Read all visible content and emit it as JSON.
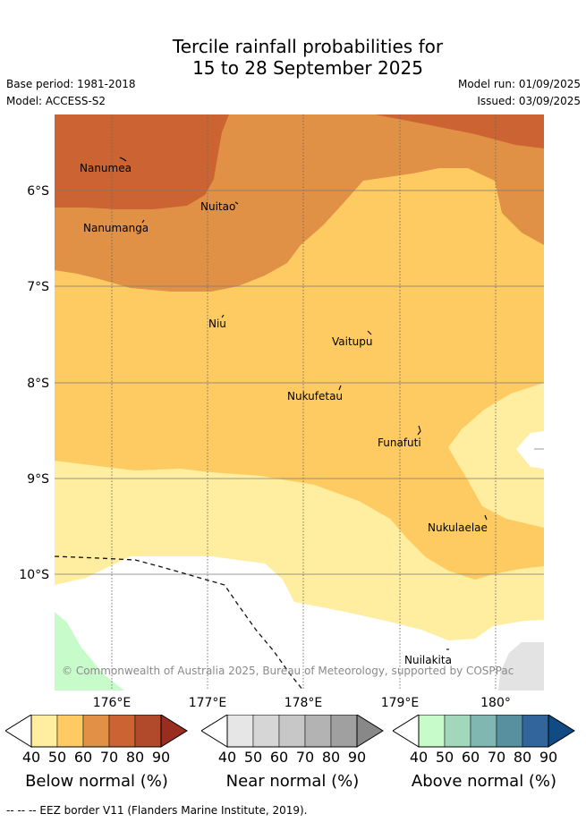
{
  "header": {
    "title_line1": "Tercile rainfall probabilities for",
    "title_line2": "15 to 28 September 2025",
    "base_period": "Base period: 1981-2018",
    "model": "Model: ACCESS-S2",
    "model_run": "Model run: 01/09/2025",
    "issued": "Issued: 03/09/2025"
  },
  "map": {
    "lat_labels": [
      "6°S",
      "7°S",
      "8°S",
      "9°S",
      "10°S"
    ],
    "lon_labels": [
      "176°E",
      "177°E",
      "178°E",
      "179°E",
      "180°"
    ],
    "islands": {
      "nanumea": "Nanumea",
      "nuitao": "Nuitao",
      "nanumanga": "Nanumanga",
      "niu": "Niu",
      "vaitupu": "Vaitupu",
      "nukufetau": "Nukufetau",
      "funafuti": "Funafuti",
      "nukulaelae": "Nukulaelae",
      "nuilakita": "Nuilakita"
    },
    "copyright": "© Commonwealth of Australia 2025, Bureau of Meteorology, supported by COSPPac",
    "colors": {
      "below_40": "#ffeda0",
      "below_50": "#fecb63",
      "below_60": "#e09145",
      "below_70": "#cb6432",
      "below_80": "#b14a2a",
      "below_90": "#9a2d1f",
      "above_40": "#c7fcca",
      "near_40": "#e3e3e3",
      "grid": "#7a7a7a"
    }
  },
  "legend": {
    "ticks": [
      "40",
      "50",
      "60",
      "70",
      "80",
      "90"
    ],
    "below_title": "Below normal (%)",
    "near_title": "Near normal (%)",
    "above_title": "Above normal (%)",
    "below_colors": [
      "#ffeda0",
      "#fecb63",
      "#e09145",
      "#cb6432",
      "#b14a2a",
      "#9a2d1f"
    ],
    "near_colors": [
      "#e6e6e6",
      "#d6d6d6",
      "#c7c7c7",
      "#b3b3b3",
      "#a0a0a0",
      "#888888"
    ],
    "above_colors": [
      "#c7fcca",
      "#a3d7bc",
      "#80b7b1",
      "#5890a0",
      "#32659c",
      "#114b84"
    ]
  },
  "footer": {
    "eez_note": "-- --  -- EEZ border V11 (Flanders Marine Institute, 2019)."
  }
}
